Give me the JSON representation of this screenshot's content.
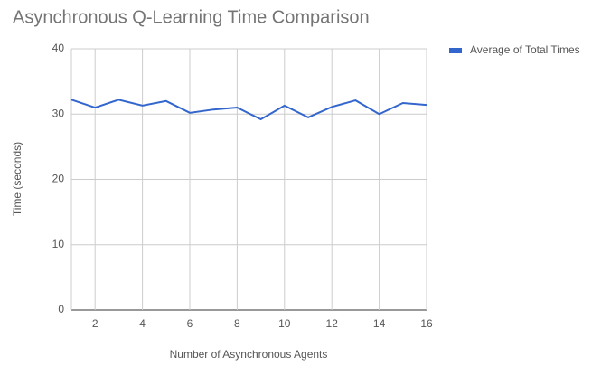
{
  "chart_data": {
    "type": "line",
    "title": "Asynchronous Q-Learning Time Comparison",
    "xlabel": "Number of Asynchronous Agents",
    "ylabel": "Time (seconds)",
    "x": [
      1,
      2,
      3,
      4,
      5,
      6,
      7,
      8,
      9,
      10,
      11,
      12,
      13,
      14,
      15,
      16
    ],
    "series": [
      {
        "name": "Average of Total Times",
        "color": "#3366cc",
        "values": [
          32.2,
          31.0,
          32.2,
          31.3,
          32.0,
          30.2,
          30.7,
          31.0,
          29.2,
          31.3,
          29.5,
          31.1,
          32.1,
          30.0,
          31.7,
          31.4
        ]
      }
    ],
    "xlim": [
      1,
      16
    ],
    "xticks": [
      2,
      4,
      6,
      8,
      10,
      12,
      14,
      16
    ],
    "ylim": [
      0,
      40
    ],
    "yticks": [
      0,
      10,
      20,
      30,
      40
    ],
    "grid": true,
    "legend": "top-right"
  }
}
